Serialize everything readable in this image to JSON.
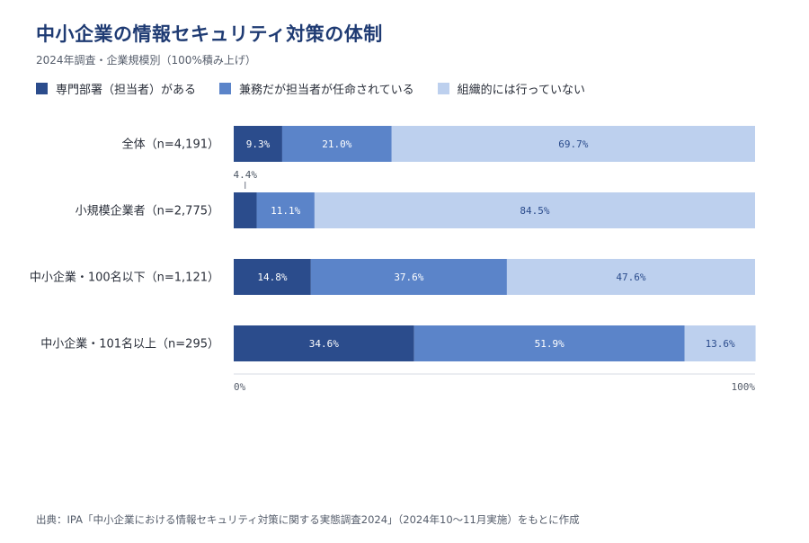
{
  "header": {
    "title": "中小企業の情報セキュリティ対策の体制",
    "subtitle": "2024年調査・企業規模別（100%積み上げ）"
  },
  "colors": {
    "dark": "#2b4c8c",
    "mid": "#5b84c9",
    "light": "#bdd0ee"
  },
  "chart_data": {
    "type": "bar",
    "orientation": "horizontal",
    "stacked": "100%",
    "categories": [
      "全体（n=4,191）",
      "小規模企業者（n=2,775）",
      "中小企業・100名以下（n=1,121）",
      "中小企業・101名以上（n=295）"
    ],
    "series": [
      {
        "name": "専門部署（担当者）がある",
        "values": [
          9.3,
          4.4,
          14.8,
          34.6
        ]
      },
      {
        "name": "兼務だが担当者が任命されている",
        "values": [
          21.0,
          11.1,
          37.6,
          51.9
        ]
      },
      {
        "name": "組織的には行っていない",
        "values": [
          69.7,
          84.5,
          47.6,
          13.6
        ]
      }
    ],
    "value_labels": [
      [
        "9.3%",
        "4.4%",
        "14.8%",
        "34.6%"
      ],
      [
        "21.0%",
        "11.1%",
        "37.6%",
        "51.9%"
      ],
      [
        "69.7%",
        "84.5%",
        "47.6%",
        "13.6%"
      ]
    ],
    "xlim": [
      0,
      100
    ],
    "x_tick_labels": [
      "0%",
      "100%"
    ],
    "legend": "top-left",
    "grid": false
  },
  "source": "出典：IPA「中小企業における情報セキュリティ対策に関する実態調査2024」（2024年10〜11月実施）をもとに作成"
}
